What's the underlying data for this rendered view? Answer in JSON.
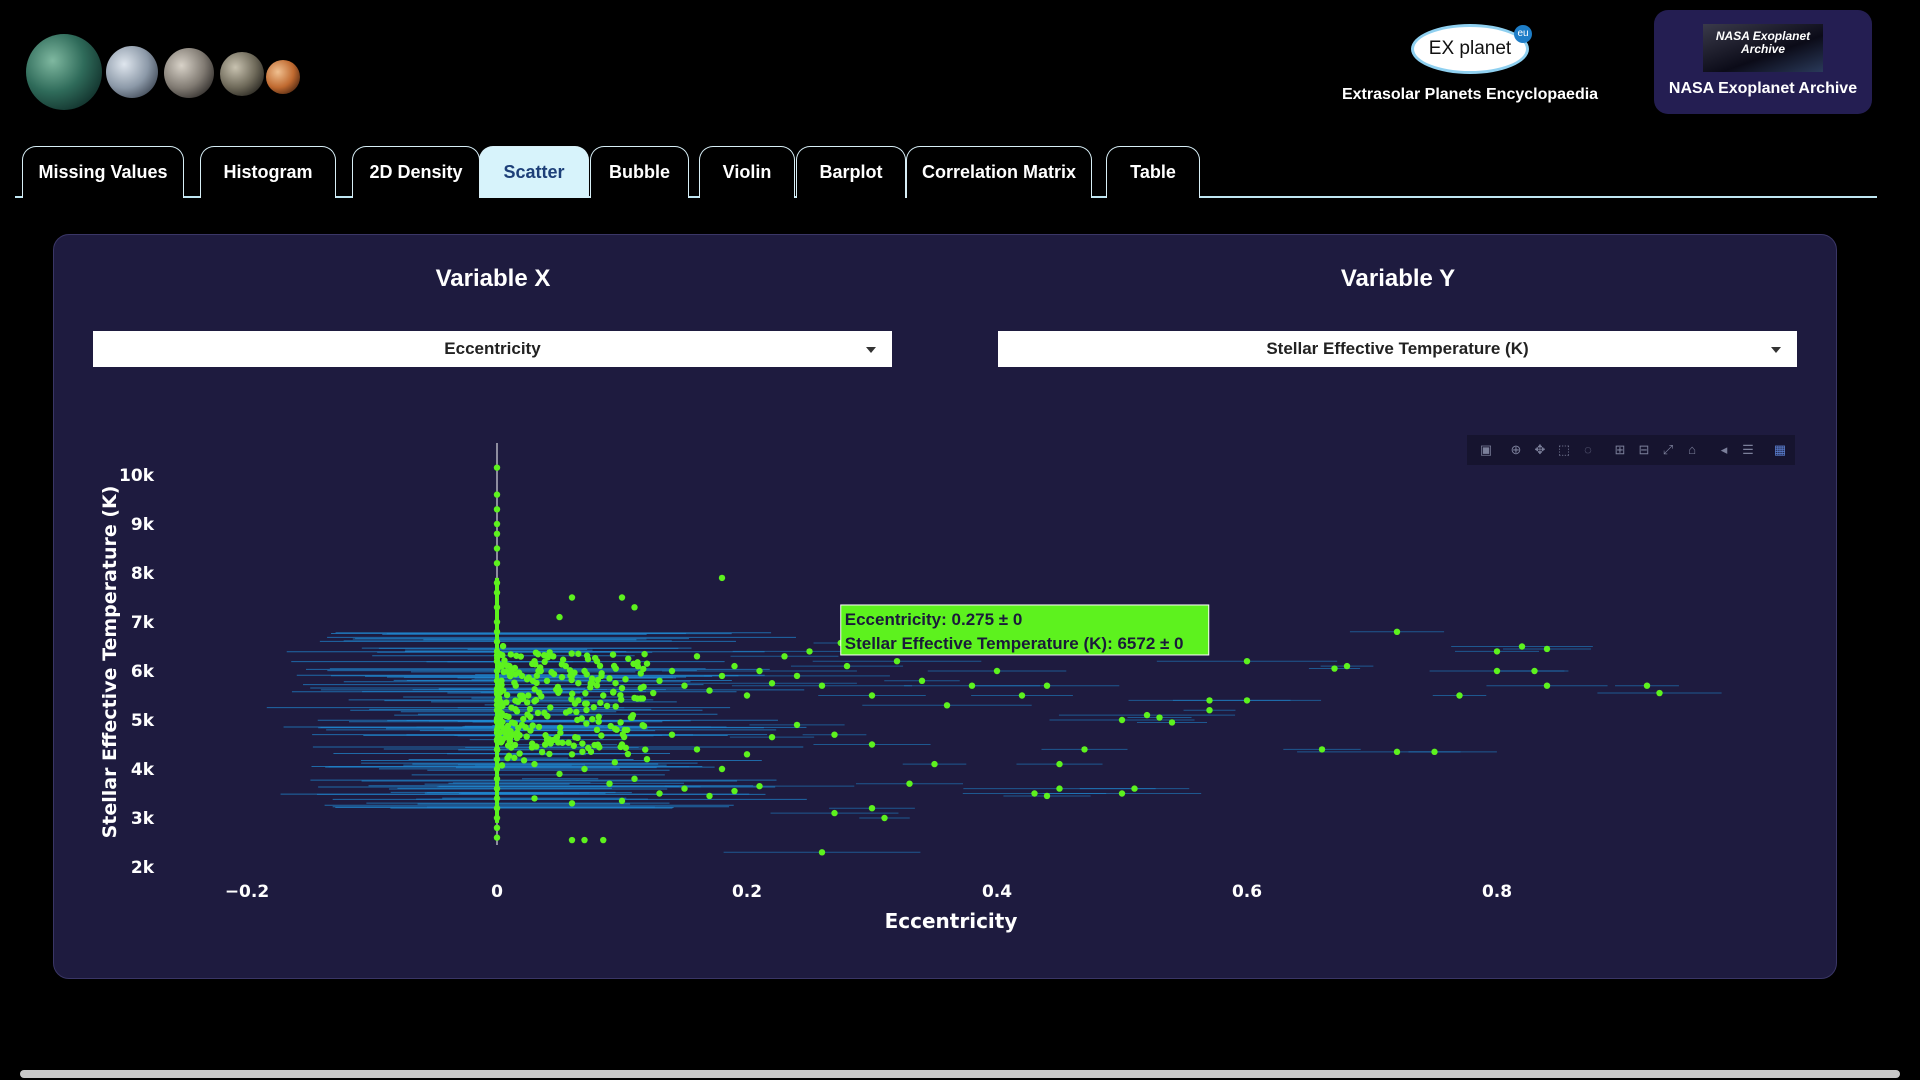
{
  "header": {
    "exoplanet_logo_text": "EX  planet",
    "exoplanet_logo_badge": "eu",
    "exoplanet_caption": "Extrasolar Planets Encyclopaedia",
    "nasa_logo_text": "NASA Exoplanet Archive",
    "nasa_caption": "NASA Exoplanet Archive"
  },
  "tabs": [
    {
      "label": "Missing Values",
      "active": false
    },
    {
      "label": "Histogram",
      "active": false
    },
    {
      "label": "2D Density",
      "active": false
    },
    {
      "label": "Scatter",
      "active": true
    },
    {
      "label": "Bubble",
      "active": false
    },
    {
      "label": "Violin",
      "active": false
    },
    {
      "label": "Barplot",
      "active": false
    },
    {
      "label": "Correlation Matrix",
      "active": false
    },
    {
      "label": "Table",
      "active": false
    }
  ],
  "controls": {
    "x_title": "Variable X",
    "y_title": "Variable Y",
    "x_selected": "Eccentricity",
    "y_selected": "Stellar Effective Temperature (K)"
  },
  "modebar_icons": [
    "camera-icon",
    "zoom-icon",
    "pan-icon",
    "box-select-icon",
    "lasso-icon",
    "zoom-in-icon",
    "zoom-out-icon",
    "autoscale-icon",
    "reset-axes-icon",
    "spike-lines-icon",
    "compare-hover-icon",
    "plotly-logo-icon"
  ],
  "tooltip": {
    "line1": "Eccentricity: 0.275 ± 0",
    "line2": "Stellar Effective Temperature (K): 6572 ± 0",
    "x": 0.275,
    "y": 6572
  },
  "colors": {
    "point": "#5df21e",
    "error_bar": "#1f8ad4",
    "panel": "#1e1b3f",
    "tab_active_bg": "#d7f3fb",
    "tab_active_text": "#1d3f78"
  },
  "chart_data": {
    "type": "scatter",
    "xlabel": "Eccentricity",
    "ylabel": "Stellar Effective Temperature (K)",
    "xlim": [
      -0.25,
      0.97
    ],
    "ylim": [
      1800,
      10600
    ],
    "xticks": [
      -0.2,
      0,
      0.2,
      0.4,
      0.6,
      0.8
    ],
    "xtick_labels": [
      "−0.2",
      "0",
      "0.2",
      "0.4",
      "0.6",
      "0.8"
    ],
    "yticks": [
      2000,
      3000,
      4000,
      5000,
      6000,
      7000,
      8000,
      9000,
      10000
    ],
    "ytick_labels": [
      "2k",
      "3k",
      "4k",
      "5k",
      "6k",
      "7k",
      "8k",
      "9k",
      "10k"
    ],
    "grid": false,
    "legend": "none",
    "series": [
      {
        "points": [
          [
            0,
            10150
          ],
          [
            0,
            9600
          ],
          [
            0,
            9300
          ],
          [
            0,
            9000
          ],
          [
            0,
            8800
          ],
          [
            0,
            8500
          ],
          [
            0,
            8200
          ],
          [
            0,
            7800
          ],
          [
            0,
            7600
          ],
          [
            0,
            7300
          ],
          [
            0,
            7000
          ],
          [
            0,
            6800
          ],
          [
            0,
            6600
          ],
          [
            0,
            6400
          ],
          [
            0,
            6200
          ],
          [
            0,
            6000
          ],
          [
            0,
            5800
          ],
          [
            0,
            5600
          ],
          [
            0,
            5400
          ],
          [
            0,
            5200
          ],
          [
            0,
            5000
          ],
          [
            0,
            4800
          ],
          [
            0,
            4600
          ],
          [
            0,
            4400
          ],
          [
            0,
            4200
          ],
          [
            0,
            4000
          ],
          [
            0,
            3800
          ],
          [
            0,
            3600
          ],
          [
            0,
            3400
          ],
          [
            0,
            3200
          ],
          [
            0,
            3000
          ],
          [
            0,
            2800
          ],
          [
            0,
            2600
          ],
          [
            0.01,
            6100
          ],
          [
            0.02,
            5900
          ],
          [
            0.03,
            6200
          ],
          [
            0.015,
            5700
          ],
          [
            0.025,
            5500
          ],
          [
            0.035,
            6000
          ],
          [
            0.04,
            5800
          ],
          [
            0.045,
            6300
          ],
          [
            0.05,
            5600
          ],
          [
            0.055,
            6100
          ],
          [
            0.06,
            5900
          ],
          [
            0.065,
            5400
          ],
          [
            0.07,
            6000
          ],
          [
            0.075,
            5750
          ],
          [
            0.08,
            6200
          ],
          [
            0.085,
            5500
          ],
          [
            0.09,
            5850
          ],
          [
            0.095,
            6050
          ],
          [
            0.1,
            5650
          ],
          [
            0.105,
            6250
          ],
          [
            0.11,
            5450
          ],
          [
            0.115,
            5950
          ],
          [
            0.12,
            6150
          ],
          [
            0.125,
            5550
          ],
          [
            0.13,
            5800
          ],
          [
            0.14,
            6000
          ],
          [
            0.15,
            5700
          ],
          [
            0.16,
            6300
          ],
          [
            0.17,
            5600
          ],
          [
            0.18,
            5900
          ],
          [
            0.19,
            6100
          ],
          [
            0.2,
            5500
          ],
          [
            0.21,
            6000
          ],
          [
            0.22,
            5750
          ],
          [
            0.02,
            4900
          ],
          [
            0.04,
            4600
          ],
          [
            0.06,
            4300
          ],
          [
            0.08,
            4800
          ],
          [
            0.1,
            4500
          ],
          [
            0.12,
            4200
          ],
          [
            0.14,
            4700
          ],
          [
            0.16,
            4400
          ],
          [
            0.03,
            4100
          ],
          [
            0.05,
            3900
          ],
          [
            0.07,
            4000
          ],
          [
            0.09,
            3700
          ],
          [
            0.11,
            3800
          ],
          [
            0.13,
            3500
          ],
          [
            0.15,
            3600
          ],
          [
            0.17,
            3450
          ],
          [
            0.19,
            3550
          ],
          [
            0.21,
            3650
          ],
          [
            0.03,
            3400
          ],
          [
            0.06,
            3300
          ],
          [
            0.1,
            3350
          ],
          [
            0.18,
            4000
          ],
          [
            0.2,
            4300
          ],
          [
            0.22,
            4650
          ],
          [
            0.24,
            4900
          ],
          [
            0.23,
            6300
          ],
          [
            0.24,
            5900
          ],
          [
            0.25,
            6400
          ],
          [
            0.26,
            5700
          ],
          [
            0.28,
            6100
          ],
          [
            0.3,
            5500
          ],
          [
            0.32,
            6200
          ],
          [
            0.34,
            5800
          ],
          [
            0.36,
            5300
          ],
          [
            0.38,
            5700
          ],
          [
            0.4,
            6000
          ],
          [
            0.42,
            5500
          ],
          [
            0.44,
            5700
          ],
          [
            0.27,
            4700
          ],
          [
            0.3,
            4500
          ],
          [
            0.33,
            3700
          ],
          [
            0.35,
            4100
          ],
          [
            0.27,
            3100
          ],
          [
            0.3,
            3200
          ],
          [
            0.31,
            3000
          ],
          [
            0.26,
            2300
          ],
          [
            0.18,
            7900
          ],
          [
            0.1,
            7500
          ],
          [
            0.05,
            7100
          ],
          [
            0.06,
            7500
          ],
          [
            0.11,
            7300
          ],
          [
            0.43,
            3500
          ],
          [
            0.44,
            3450
          ],
          [
            0.45,
            4100
          ],
          [
            0.45,
            3600
          ],
          [
            0.47,
            4400
          ],
          [
            0.5,
            3500
          ],
          [
            0.5,
            5000
          ],
          [
            0.51,
            3600
          ],
          [
            0.52,
            5100
          ],
          [
            0.53,
            5050
          ],
          [
            0.54,
            4950
          ],
          [
            0.57,
            5200
          ],
          [
            0.57,
            5400
          ],
          [
            0.6,
            6200
          ],
          [
            0.6,
            5400
          ],
          [
            0.67,
            6050
          ],
          [
            0.68,
            6100
          ],
          [
            0.66,
            4400
          ],
          [
            0.72,
            6800
          ],
          [
            0.72,
            4350
          ],
          [
            0.75,
            4350
          ],
          [
            0.77,
            5500
          ],
          [
            0.8,
            6400
          ],
          [
            0.8,
            6000
          ],
          [
            0.82,
            6500
          ],
          [
            0.83,
            6000
          ],
          [
            0.84,
            6450
          ],
          [
            0.84,
            5700
          ],
          [
            0.92,
            5700
          ],
          [
            0.93,
            5550
          ],
          [
            0.275,
            6572
          ],
          [
            0.06,
            2550
          ],
          [
            0.07,
            2550
          ],
          [
            0.085,
            2550
          ]
        ]
      }
    ]
  }
}
